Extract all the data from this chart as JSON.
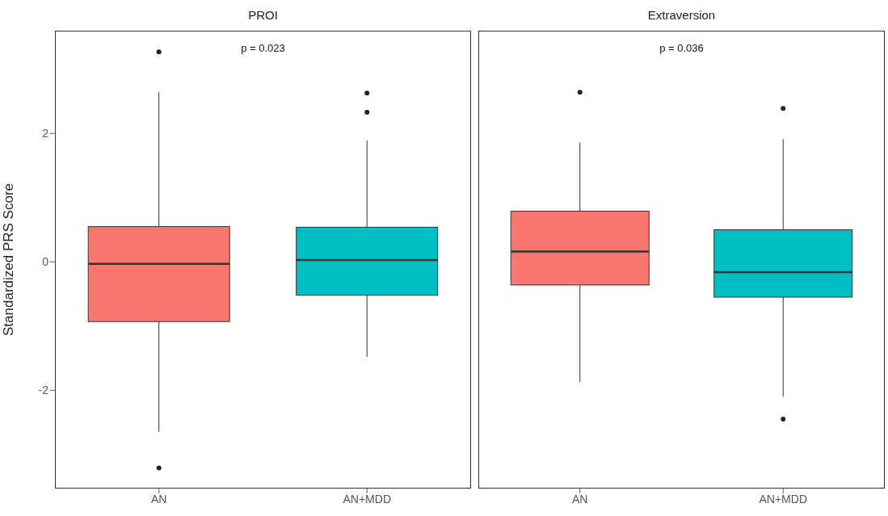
{
  "chart_data": [
    {
      "type": "box",
      "title": "PROI",
      "ylabel": "Standardized PRS Score",
      "categories": [
        "AN",
        "AN+MDD"
      ],
      "colors": [
        "#f8766d",
        "#00bfc4"
      ],
      "boxes": [
        {
          "low": -2.65,
          "q1": -0.93,
          "median": -0.03,
          "q3": 0.55,
          "high": 2.64,
          "outliers": [
            3.27,
            -3.21
          ]
        },
        {
          "low": -1.48,
          "q1": -0.52,
          "median": 0.03,
          "q3": 0.54,
          "high": 1.89,
          "outliers": [
            2.63,
            2.33
          ]
        }
      ],
      "ylim": [
        -3.53,
        3.6
      ],
      "yticks": [
        -2,
        0,
        2
      ],
      "grid": false,
      "annotations": [
        "p = 0.023"
      ]
    },
    {
      "type": "box",
      "title": "Extraversion",
      "categories": [
        "AN",
        "AN+MDD"
      ],
      "colors": [
        "#f8766d",
        "#00bfc4"
      ],
      "boxes": [
        {
          "low": -1.87,
          "q1": -0.36,
          "median": 0.16,
          "q3": 0.79,
          "high": 1.86,
          "outliers": [
            2.64
          ]
        },
        {
          "low": -2.1,
          "q1": -0.55,
          "median": -0.16,
          "q3": 0.5,
          "high": 1.91,
          "outliers": [
            2.39,
            -2.45
          ]
        }
      ],
      "ylim": [
        -3.53,
        3.6
      ],
      "yticks": [
        -2,
        0,
        2
      ],
      "grid": false,
      "tick_labels": "x",
      "annotations": [
        "p = 0.036"
      ]
    }
  ]
}
